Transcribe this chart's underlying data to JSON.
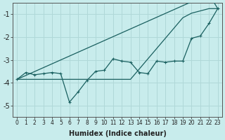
{
  "xlabel": "Humidex (Indice chaleur)",
  "bg_color": "#c8ecec",
  "grid_color": "#b0d8d8",
  "line_color": "#1a6060",
  "x_data": [
    0,
    1,
    2,
    3,
    4,
    5,
    6,
    7,
    8,
    9,
    10,
    11,
    12,
    13,
    14,
    15,
    16,
    17,
    18,
    19,
    20,
    21,
    22,
    23
  ],
  "y_zigzag": [
    -3.85,
    -3.55,
    -3.65,
    -3.6,
    -3.55,
    -3.6,
    -4.85,
    -4.4,
    -3.9,
    -3.5,
    -3.45,
    -2.95,
    -3.05,
    -3.1,
    -3.55,
    -3.6,
    -3.05,
    -3.1,
    -3.05,
    -3.05,
    -2.05,
    -1.95,
    -1.4,
    -0.75
  ],
  "y_line_diag": [
    -3.85,
    -3.68,
    -3.51,
    -3.34,
    -3.17,
    -3.0,
    -2.83,
    -2.66,
    -2.49,
    -2.32,
    -2.15,
    -1.98,
    -1.81,
    -1.64,
    -1.47,
    -1.3,
    -1.13,
    -0.96,
    -0.79,
    -0.62,
    -0.45,
    -0.28,
    -0.11,
    -0.75
  ],
  "y_line_flat": [
    -3.85,
    -3.85,
    -3.85,
    -3.85,
    -3.85,
    -3.85,
    -3.85,
    -3.85,
    -3.85,
    -3.85,
    -3.85,
    -3.85,
    -3.85,
    -3.85,
    -3.4,
    -2.95,
    -2.5,
    -2.05,
    -1.6,
    -1.15,
    -0.95,
    -0.85,
    -0.75,
    -0.75
  ],
  "ylim": [
    -5.5,
    -0.5
  ],
  "yticks": [
    -5,
    -4,
    -3,
    -2,
    -1
  ],
  "xlim": [
    -0.5,
    23.5
  ],
  "xtick_labels": [
    "0",
    "1",
    "2",
    "3",
    "4",
    "5",
    "6",
    "7",
    "8",
    "9",
    "10",
    "11",
    "12",
    "13",
    "14",
    "15",
    "16",
    "17",
    "18",
    "19",
    "20",
    "21",
    "22",
    "23"
  ],
  "xlabel_fontsize": 7,
  "ytick_fontsize": 7,
  "xtick_fontsize": 5.5
}
